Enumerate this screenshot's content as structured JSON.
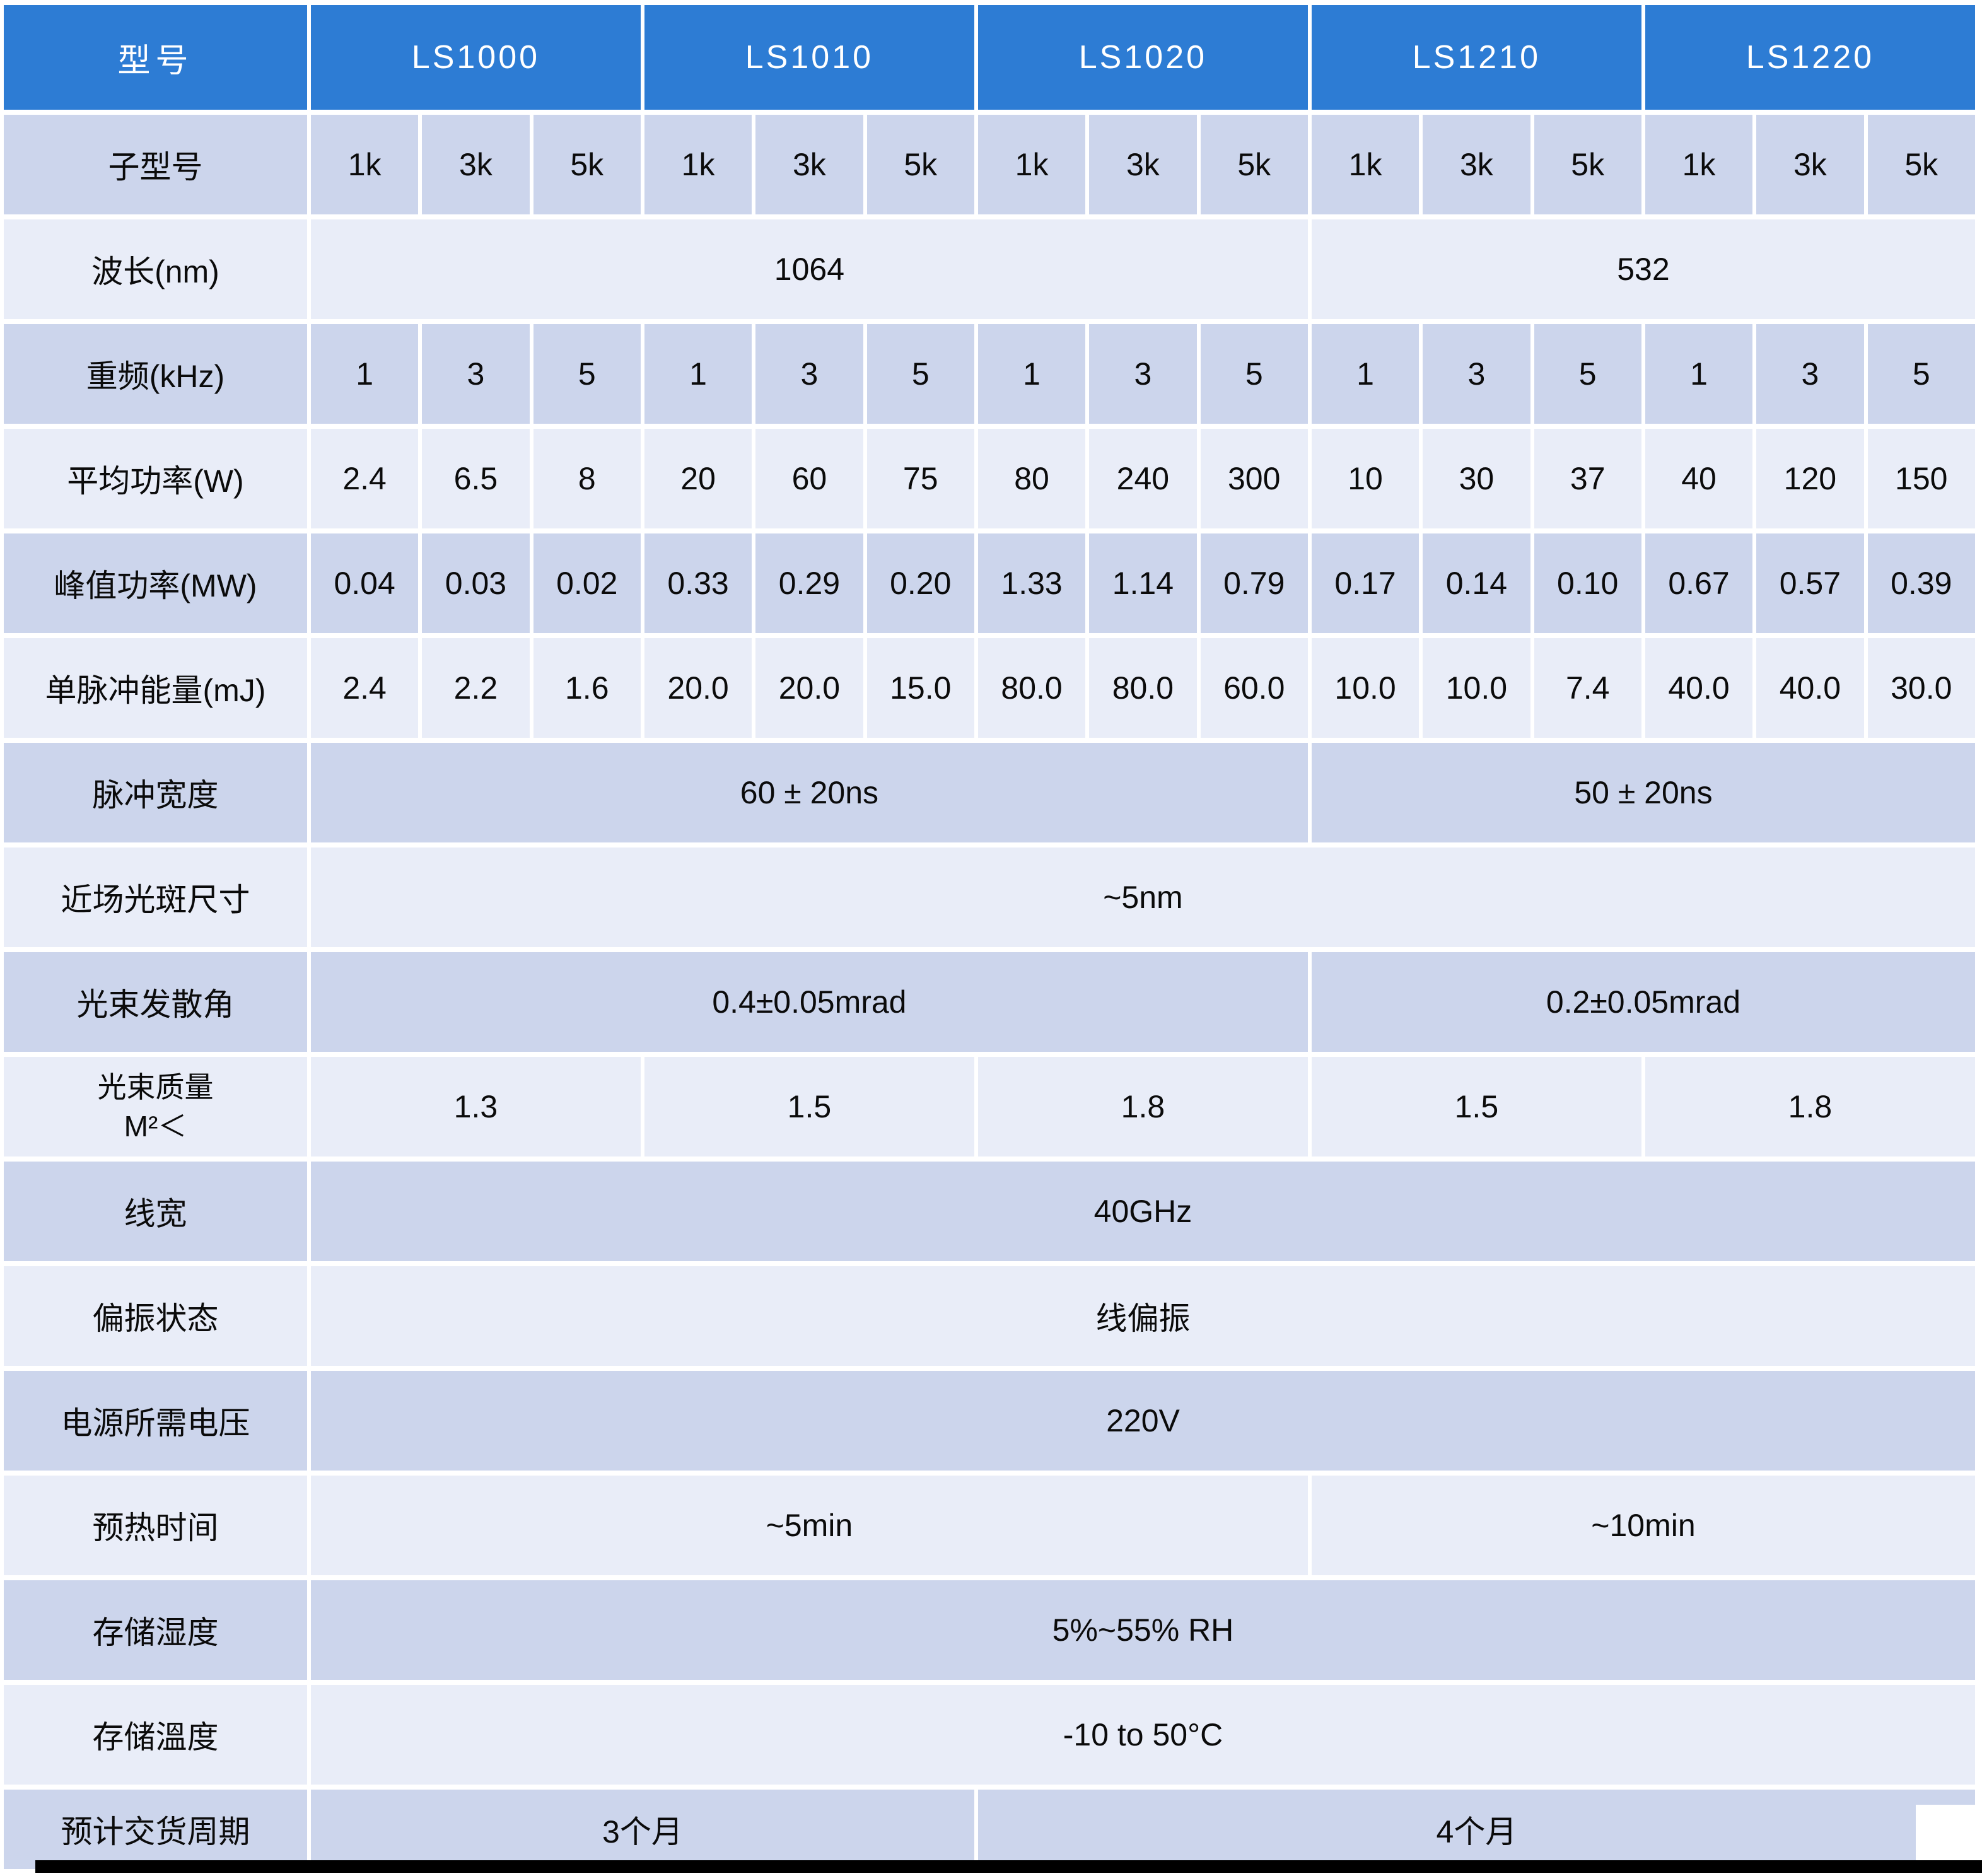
{
  "header": {
    "model_label": "型号",
    "models": [
      "LS1000",
      "LS1010",
      "LS1020",
      "LS1210",
      "LS1220"
    ]
  },
  "rows": {
    "sub_model": {
      "label": "子型号",
      "values": [
        "1k",
        "3k",
        "5k",
        "1k",
        "3k",
        "5k",
        "1k",
        "3k",
        "5k",
        "1k",
        "3k",
        "5k",
        "1k",
        "3k",
        "5k"
      ]
    },
    "wavelength": {
      "label": "波长(nm)",
      "left": "1064",
      "right": "532"
    },
    "rep_rate": {
      "label": "重频(kHz)",
      "values": [
        "1",
        "3",
        "5",
        "1",
        "3",
        "5",
        "1",
        "3",
        "5",
        "1",
        "3",
        "5",
        "1",
        "3",
        "5"
      ]
    },
    "avg_power": {
      "label": "平均功率(W)",
      "values": [
        "2.4",
        "6.5",
        "8",
        "20",
        "60",
        "75",
        "80",
        "240",
        "300",
        "10",
        "30",
        "37",
        "40",
        "120",
        "150"
      ]
    },
    "peak_power": {
      "label": "峰值功率(MW)",
      "values": [
        "0.04",
        "0.03",
        "0.02",
        "0.33",
        "0.29",
        "0.20",
        "1.33",
        "1.14",
        "0.79",
        "0.17",
        "0.14",
        "0.10",
        "0.67",
        "0.57",
        "0.39"
      ]
    },
    "pulse_energy": {
      "label": "单脉冲能量(mJ)",
      "values": [
        "2.4",
        "2.2",
        "1.6",
        "20.0",
        "20.0",
        "15.0",
        "80.0",
        "80.0",
        "60.0",
        "10.0",
        "10.0",
        "7.4",
        "40.0",
        "40.0",
        "30.0"
      ]
    },
    "pulse_width": {
      "label": "脉冲宽度",
      "left": "60 ± 20ns",
      "right": "50 ± 20ns"
    },
    "spot_size": {
      "label": "近场光斑尺寸",
      "value": "~5nm"
    },
    "divergence": {
      "label": "光束发散角",
      "left": "0.4±0.05mrad",
      "right": "0.2±0.05mrad"
    },
    "beam_quality": {
      "label": "光束质量\nM²＜",
      "values": [
        "1.3",
        "1.5",
        "1.8",
        "1.5",
        "1.8"
      ]
    },
    "linewidth": {
      "label": "线宽",
      "value": "40GHz"
    },
    "polarization": {
      "label": "偏振状态",
      "value": "线偏振"
    },
    "voltage": {
      "label": "电源所需电压",
      "value": "220V"
    },
    "warmup": {
      "label": "预热时间",
      "left": "~5min",
      "right": "~10min"
    },
    "humidity": {
      "label": "存储湿度",
      "value": "5%~55% RH"
    },
    "storage_temp": {
      "label": "存储溫度",
      "value": "-10 to 50°C"
    },
    "delivery": {
      "label": "预计交货周期",
      "left": "3个月",
      "right": "4个月"
    }
  },
  "colors": {
    "header_blue": "#2d7cd4",
    "row_dark": "#ccd5ec",
    "row_light": "#e9edf8",
    "text": "#0b0b0b",
    "header_text": "#ffffff"
  }
}
